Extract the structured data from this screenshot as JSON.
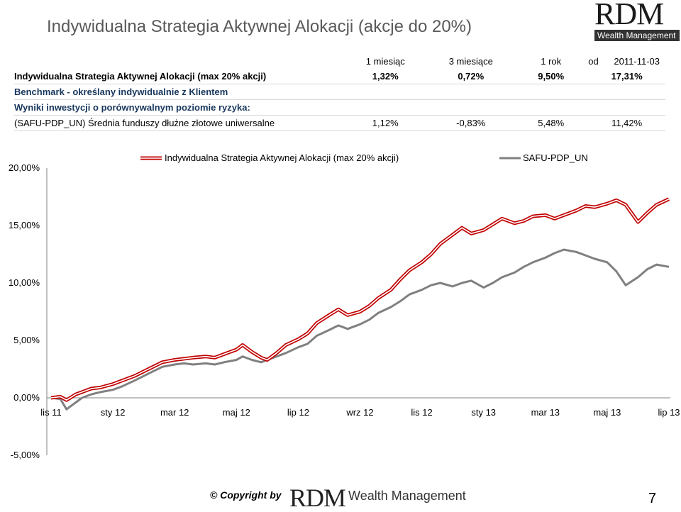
{
  "header": {
    "title": "Indywidualna Strategia Aktywnej Alokacji (akcje do 20%)",
    "logo_big": "RDM",
    "logo_small": "Wealth Management"
  },
  "table": {
    "columns": [
      "1 miesiąc",
      "3 miesiące",
      "1 rok",
      "od",
      "2011-11-03"
    ],
    "strategy_row": {
      "label": "Indywidualna Strategia Aktywnej Alokacji (max 20% akcji)",
      "values": [
        "1,32%",
        "0,72%",
        "9,50%",
        "17,31%"
      ]
    },
    "benchmark_heading": "Benchmark - określany indywidualnie z Klientem",
    "benchmark_sub": "Wyniki inwestycji o porównywalnym poziomie ryzyka:",
    "benchmark_row": {
      "label": "(SAFU-PDP_UN) Średnia funduszy dłużne złotowe uniwersalne",
      "values": [
        "1,12%",
        "-0,83%",
        "5,48%",
        "11,42%"
      ]
    }
  },
  "chart_data": {
    "type": "line",
    "y_ticks": [
      "20,00%",
      "15,00%",
      "10,00%",
      "5,00%",
      "0,00%",
      "-5,00%"
    ],
    "ylim": [
      -5,
      20
    ],
    "x_ticks": [
      "lis 11",
      "sty 12",
      "mar 12",
      "maj 12",
      "lip 12",
      "wrz 12",
      "lis 12",
      "sty 13",
      "mar 13",
      "maj 13",
      "lip 13"
    ],
    "legend": [
      "Indywidualna Strategia Aktywnej Alokacji (max 20% akcji)",
      "SAFU-PDP_UN"
    ],
    "colors": {
      "strategy": "#e02020",
      "benchmark": "#808080"
    },
    "x_range": [
      0,
      20
    ],
    "series": [
      {
        "name": "Indywidualna Strategia Aktywnej Alokacji (max 20% akcji)",
        "color": "#e02020",
        "x": [
          0,
          0.3,
          0.5,
          0.8,
          1,
          1.3,
          1.6,
          2,
          2.3,
          2.7,
          3,
          3.3,
          3.6,
          4,
          4.3,
          4.6,
          5,
          5.3,
          5.6,
          6,
          6.2,
          6.5,
          6.8,
          7,
          7.3,
          7.6,
          8,
          8.3,
          8.6,
          9,
          9.3,
          9.6,
          10,
          10.3,
          10.6,
          11,
          11.3,
          11.6,
          12,
          12.3,
          12.6,
          13,
          13.3,
          13.6,
          14,
          14.3,
          14.6,
          15,
          15.3,
          15.6,
          16,
          16.3,
          16.6,
          17,
          17.3,
          17.6,
          18,
          18.3,
          18.6,
          19,
          19.3,
          19.6,
          20
        ],
        "values": [
          0.0,
          0.1,
          -0.2,
          0.3,
          0.5,
          0.8,
          0.9,
          1.2,
          1.5,
          1.9,
          2.3,
          2.7,
          3.1,
          3.3,
          3.4,
          3.5,
          3.6,
          3.5,
          3.8,
          4.2,
          4.6,
          4.0,
          3.5,
          3.3,
          3.9,
          4.6,
          5.1,
          5.6,
          6.5,
          7.2,
          7.7,
          7.2,
          7.5,
          8.0,
          8.7,
          9.4,
          10.3,
          11.1,
          11.8,
          12.5,
          13.4,
          14.2,
          14.8,
          14.3,
          14.6,
          15.1,
          15.6,
          15.2,
          15.4,
          15.8,
          15.9,
          15.6,
          15.9,
          16.3,
          16.7,
          16.6,
          16.9,
          17.2,
          16.8,
          15.3,
          16.1,
          16.8,
          17.3
        ]
      },
      {
        "name": "SAFU-PDP_UN",
        "color": "#808080",
        "x": [
          0,
          0.3,
          0.5,
          0.8,
          1,
          1.3,
          1.6,
          2,
          2.3,
          2.7,
          3,
          3.3,
          3.6,
          4,
          4.3,
          4.6,
          5,
          5.3,
          5.6,
          6,
          6.2,
          6.5,
          6.8,
          7,
          7.3,
          7.6,
          8,
          8.3,
          8.6,
          9,
          9.3,
          9.6,
          10,
          10.3,
          10.6,
          11,
          11.3,
          11.6,
          12,
          12.3,
          12.6,
          13,
          13.3,
          13.6,
          14,
          14.3,
          14.6,
          15,
          15.3,
          15.6,
          16,
          16.3,
          16.6,
          17,
          17.3,
          17.6,
          18,
          18.3,
          18.6,
          19,
          19.3,
          19.6,
          20
        ],
        "values": [
          0.0,
          -0.1,
          -1.0,
          -0.4,
          0.0,
          0.3,
          0.5,
          0.7,
          1.0,
          1.5,
          1.9,
          2.3,
          2.7,
          2.9,
          3.0,
          2.9,
          3.0,
          2.9,
          3.1,
          3.3,
          3.6,
          3.3,
          3.1,
          3.3,
          3.6,
          3.9,
          4.4,
          4.7,
          5.4,
          5.9,
          6.3,
          6.0,
          6.4,
          6.8,
          7.4,
          7.9,
          8.4,
          9.0,
          9.4,
          9.8,
          10.0,
          9.7,
          10.0,
          10.2,
          9.6,
          10.0,
          10.5,
          10.9,
          11.4,
          11.8,
          12.2,
          12.6,
          12.9,
          12.7,
          12.4,
          12.1,
          11.8,
          11.0,
          9.8,
          10.5,
          11.2,
          11.6,
          11.4
        ]
      }
    ]
  },
  "footer": {
    "copyright": "© Copyright by",
    "logo_big": "RDM",
    "logo_small": "Wealth Management",
    "page_number": "7"
  }
}
